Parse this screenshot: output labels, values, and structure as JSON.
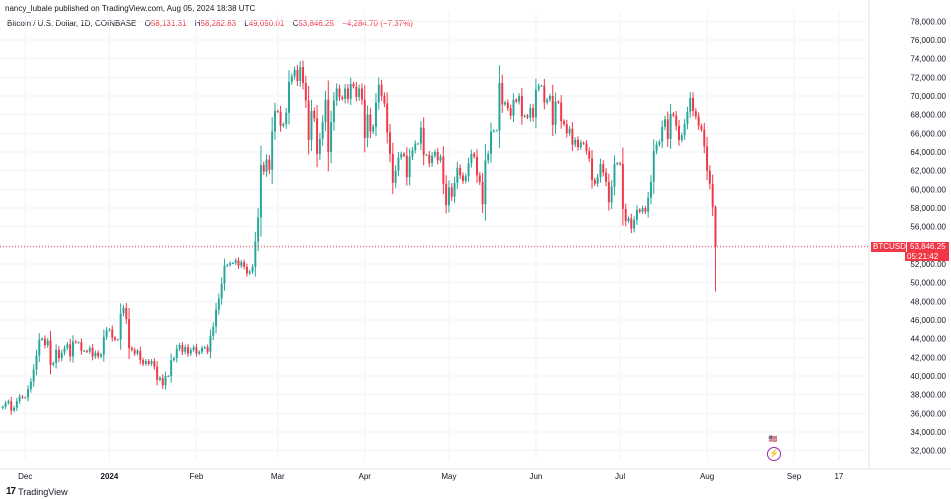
{
  "header": {
    "publisher": "nancy_lubale published on TradingView.com, Aug 05, 2024 18:38 UTC"
  },
  "legend": {
    "symbol": "Bitcoin / U.S. Dollar, 1D, COINBASE",
    "o_label": "O",
    "o_value": "58,131.31",
    "h_label": "H",
    "h_value": "58,282.83",
    "l_label": "L",
    "l_value": "49,050.01",
    "c_label": "C",
    "c_value": "53,846.25",
    "change": "−4,284.70 (−7.37%)"
  },
  "last_price": {
    "symbol": "BTCUSD",
    "price": "53,846.25",
    "countdown": "05:21:42"
  },
  "footer": {
    "brand": "TradingView",
    "mark": "17"
  },
  "badges": {
    "lightning": "⚡",
    "flag": "🇺🇸"
  },
  "colors": {
    "up": "#26a69a",
    "down": "#f23645",
    "grid": "#f0f3fa",
    "axis_text": "#131722"
  },
  "chart_data": {
    "type": "candlestick",
    "title": "Bitcoin / U.S. Dollar, 1D, COINBASE",
    "ylim": [
      31000,
      79000
    ],
    "y_ticks": [
      32000,
      34000,
      36000,
      38000,
      40000,
      42000,
      44000,
      46000,
      48000,
      50000,
      52000,
      54000,
      56000,
      58000,
      60000,
      62000,
      64000,
      66000,
      68000,
      70000,
      72000,
      74000,
      76000,
      78000
    ],
    "y_tick_labels": [
      "32,000.00",
      "34,000.00",
      "36,000.00",
      "38,000.00",
      "40,000.00",
      "42,000.00",
      "44,000.00",
      "46,000.00",
      "48,000.00",
      "50,000.00",
      "52,000.00",
      "54,000.00",
      "56,000.00",
      "58,000.00",
      "60,000.00",
      "62,000.00",
      "64,000.00",
      "66,000.00",
      "68,000.00",
      "70,000.00",
      "72,000.00",
      "74,000.00",
      "76,000.00",
      "78,000.00"
    ],
    "x_ticks": [
      {
        "label": "Dec",
        "day": 8,
        "bold": false
      },
      {
        "label": "2024",
        "day": 38,
        "bold": true
      },
      {
        "label": "Feb",
        "day": 69,
        "bold": false
      },
      {
        "label": "Mar",
        "day": 98,
        "bold": false
      },
      {
        "label": "Apr",
        "day": 129,
        "bold": false
      },
      {
        "label": "May",
        "day": 159,
        "bold": false
      },
      {
        "label": "Jun",
        "day": 190,
        "bold": false
      },
      {
        "label": "Jul",
        "day": 220,
        "bold": false
      },
      {
        "label": "Aug",
        "day": 251,
        "bold": false
      },
      {
        "label": "Sep",
        "day": 282,
        "bold": false
      },
      {
        "label": "17",
        "day": 298,
        "bold": false
      }
    ],
    "x_range_days": [
      -1,
      308
    ],
    "series": [
      {
        "name": "BTCUSD",
        "closes": [
          36700,
          37100,
          37300,
          36300,
          36600,
          37300,
          37800,
          37700,
          37700,
          38600,
          39400,
          40700,
          42200,
          43900,
          44000,
          43300,
          43800,
          41200,
          41400,
          42800,
          41900,
          42500,
          43000,
          43400,
          42100,
          43700,
          43600,
          43600,
          42700,
          42700,
          42600,
          43000,
          42100,
          42500,
          42100,
          42300,
          44200,
          44900,
          45000,
          44100,
          43900,
          43900,
          46700,
          47300,
          46100,
          43000,
          42800,
          42400,
          42700,
          41700,
          41300,
          41600,
          41300,
          41600,
          41000,
          39600,
          39800,
          39000,
          40000,
          40000,
          41700,
          41900,
          42900,
          43300,
          42600,
          43100,
          42400,
          42800,
          43100,
          42400,
          42600,
          43000,
          43100,
          42600,
          44300,
          45300,
          47100,
          48300,
          49900,
          51800,
          51900,
          52100,
          52100,
          52400,
          51800,
          52200,
          51700,
          51000,
          51200,
          51700,
          54400,
          57000,
          62600,
          61900,
          63200,
          62100,
          66200,
          68400,
          68300,
          66800,
          67000,
          68200,
          71500,
          72100,
          72800,
          71600,
          73100,
          71400,
          69500,
          65300,
          68400,
          67600,
          63800,
          65400,
          67200,
          69600,
          64000,
          67200,
          69500,
          70800,
          69900,
          69700,
          70800,
          69700,
          71300,
          71000,
          69900,
          70800,
          69600,
          65500,
          68000,
          66200,
          66700,
          69300,
          71200,
          70000,
          69200,
          66100,
          63800,
          60700,
          62000,
          63400,
          63800,
          63600,
          61300,
          63500,
          64200,
          64900,
          64900,
          66600,
          63700,
          63700,
          62800,
          63600,
          64000,
          63100,
          63500,
          60600,
          58300,
          60200,
          59200,
          60700,
          62300,
          61500,
          60900,
          61400,
          62800,
          63800,
          63500,
          61500,
          60800,
          58400,
          63100,
          63800,
          66200,
          66300,
          66300,
          71400,
          69100,
          69300,
          68700,
          67900,
          69600,
          69400,
          70000,
          67800,
          67900,
          67700,
          68700,
          67700,
          70700,
          71100,
          71100,
          69300,
          69600,
          70000,
          66900,
          69400,
          69300,
          67300,
          67000,
          66000,
          66500,
          64800,
          65300,
          64500,
          65000,
          64900,
          64100,
          63300,
          61000,
          60600,
          61300,
          62700,
          61800,
          60800,
          58600,
          60300,
          62700,
          62800,
          62700,
          57900,
          56600,
          56900,
          55800,
          56700,
          57800,
          57600,
          58000,
          57600,
          59100,
          60800,
          64100,
          64800,
          65100,
          66700,
          67500,
          65400,
          68100,
          67900,
          66800,
          65300,
          65800,
          67000,
          68300,
          69800,
          68400,
          67800,
          66800,
          66400,
          64600,
          62000,
          60600,
          58100,
          53846
        ]
      }
    ],
    "current_price": 53846.25,
    "last_candle": {
      "open": 58131.31,
      "high": 58282.83,
      "low": 49050.01,
      "close": 53846.25
    }
  }
}
